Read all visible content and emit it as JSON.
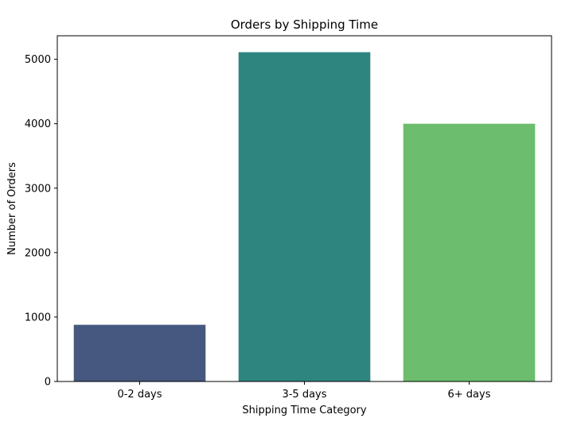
{
  "chart_data": {
    "type": "bar",
    "title": "Orders by Shipping Time",
    "xlabel": "Shipping Time Category",
    "ylabel": "Number of Orders",
    "categories": [
      "0-2 days",
      "3-5 days",
      "6+ days"
    ],
    "values": [
      880,
      5110,
      4000
    ],
    "colors": [
      "#46587f",
      "#2e8580",
      "#6cbd6e"
    ],
    "ylim": [
      0,
      5365
    ],
    "yticks": [
      0,
      1000,
      2000,
      3000,
      4000,
      5000
    ],
    "grid": false,
    "legend": "none"
  }
}
